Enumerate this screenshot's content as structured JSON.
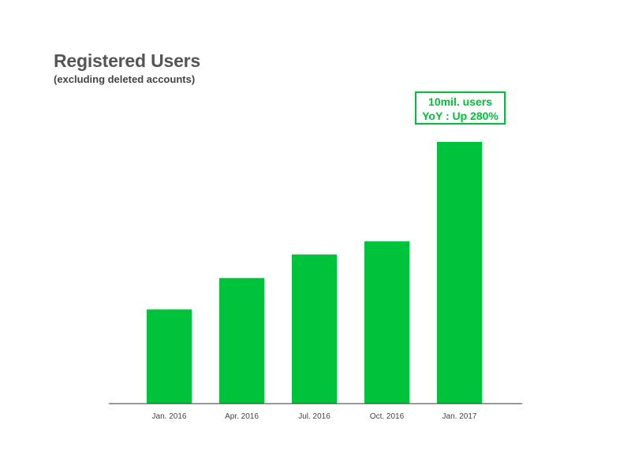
{
  "header": {
    "title": "Registered Users",
    "subtitle": "(excluding deleted accounts)"
  },
  "callout": {
    "line1": "10mil. users",
    "line2": "YoY : Up 280%"
  },
  "colors": {
    "bar": "#00c33c",
    "axis": "#333333",
    "label": "#444444",
    "callout": "#00c03a"
  },
  "chart_data": {
    "type": "bar",
    "categories": [
      "Jan. 2016",
      "Apr. 2016",
      "Jul. 2016",
      "Oct. 2016",
      "Jan. 2017"
    ],
    "values": [
      3.6,
      4.8,
      5.7,
      6.2,
      10.0
    ],
    "title": "Registered Users",
    "subtitle": "(excluding deleted accounts)",
    "xlabel": "",
    "ylabel": "",
    "ylim": [
      0,
      10.5
    ],
    "grid": false,
    "annotations": [
      {
        "category": "Jan. 2017",
        "text": [
          "10mil. users",
          "YoY : Up 280%"
        ]
      }
    ]
  }
}
